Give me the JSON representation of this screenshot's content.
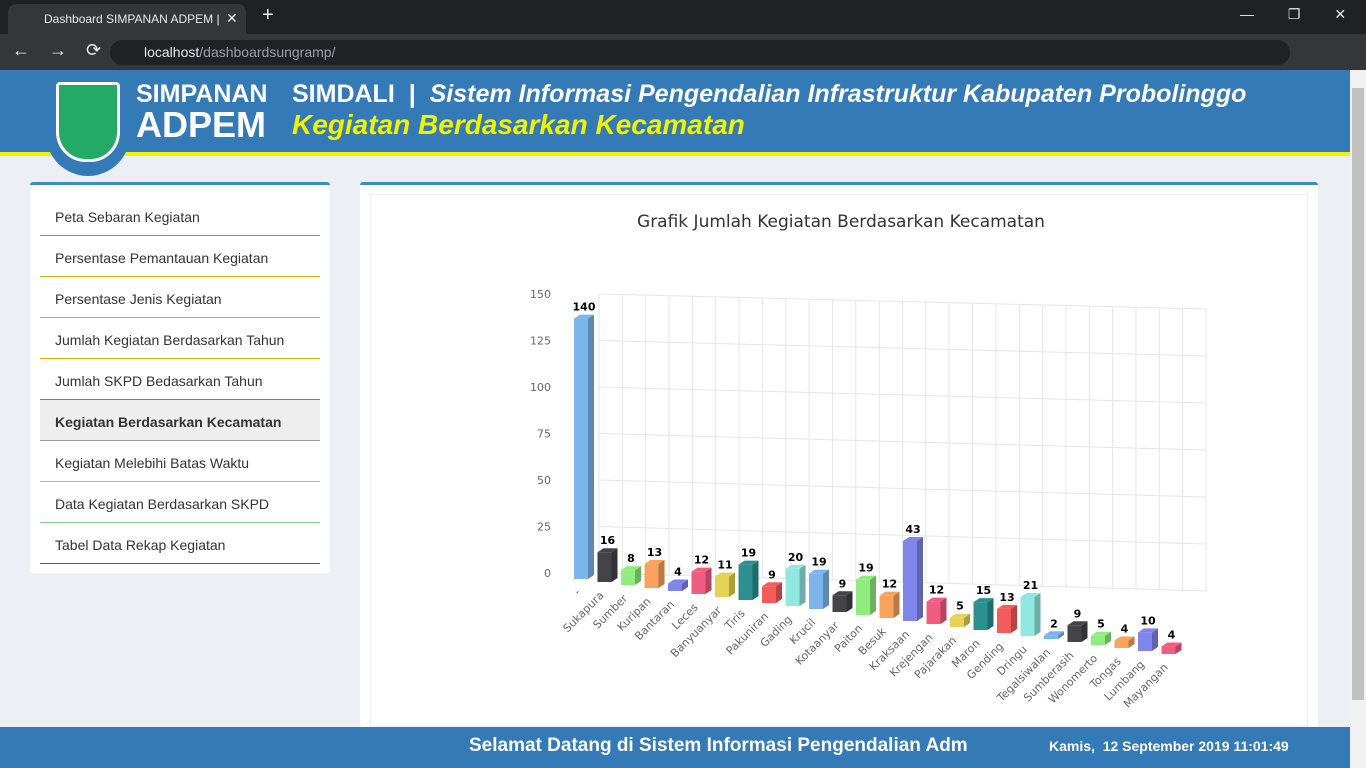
{
  "browser": {
    "tab_title": "Dashboard SIMPANAN ADPEM |",
    "url_host": "localhost",
    "url_path": "/dashboardsungramp/"
  },
  "header": {
    "brand_line1": "SIMPANAN",
    "brand_line2": "ADPEM",
    "app_name": "SIMDALI",
    "separator": "|",
    "title": "Sistem Informasi Pengendalian Infrastruktur Kabupaten Probolinggo",
    "subtitle": "Kegiatan Berdasarkan Kecamatan"
  },
  "menu": {
    "items": [
      "Peta Sebaran Kegiatan",
      "Persentase Pemantauan Kegiatan",
      "Persentase Jenis Kegiatan",
      "Jumlah Kegiatan Berdasarkan Tahun",
      "Jumlah SKPD Bedasarkan Tahun",
      "Kegiatan Berdasarkan Kecamatan",
      "Kegiatan Melebihi Batas Waktu",
      "Data Kegiatan Berdasarkan SKPD",
      "Tabel Data Rekap Kegiatan"
    ],
    "active": 5
  },
  "chart_data": {
    "type": "bar3d",
    "title": "Grafik Jumlah Kegiatan Berdasarkan Kecamatan",
    "categories": [
      "-",
      "Sukapura",
      "Sumber",
      "Kuripan",
      "Bantaran",
      "Leces",
      "Banyuanyar",
      "Tiris",
      "Pakuniran",
      "Gading",
      "Krucil",
      "Kotaanyar",
      "Paiton",
      "Besuk",
      "Kraksaan",
      "Krejengan",
      "Pajarakan",
      "Maron",
      "Gending",
      "Dringu",
      "Tegalsiwalan",
      "Sumberasih",
      "Wonomerto",
      "Tongas",
      "Lumbang",
      "Mayangan"
    ],
    "values": [
      140,
      16,
      8,
      13,
      4,
      12,
      11,
      19,
      9,
      20,
      19,
      9,
      19,
      12,
      43,
      12,
      5,
      15,
      13,
      21,
      2,
      9,
      5,
      4,
      10,
      4
    ],
    "colors": [
      "#7cb5ec",
      "#434348",
      "#90ed7d",
      "#f7a35c",
      "#8085e9",
      "#f15c80",
      "#e4d354",
      "#2b908f",
      "#f45b5b",
      "#91e8e1"
    ],
    "ylim": [
      0,
      150
    ],
    "yticks": [
      0,
      25,
      50,
      75,
      100,
      125,
      150
    ],
    "grid": true
  },
  "footer": {
    "marquee": "Selamat Datang di Sistem Informasi Pengendalian Adm",
    "datetime": "Kamis,  12 September 2019 11:01:49"
  }
}
